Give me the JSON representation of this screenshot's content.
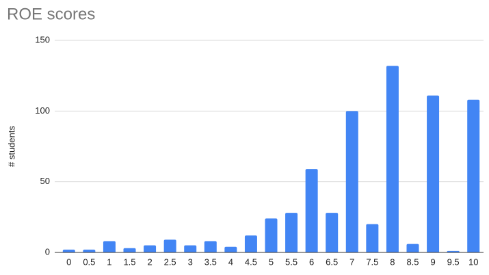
{
  "chart_data": {
    "type": "bar",
    "title": "ROE scores",
    "y_label": "# students",
    "categories": [
      "0",
      "0.5",
      "1",
      "1.5",
      "2",
      "2.5",
      "3",
      "3.5",
      "4",
      "4.5",
      "5",
      "5.5",
      "6",
      "6.5",
      "7",
      "7.5",
      "8",
      "8.5",
      "9",
      "9.5",
      "10"
    ],
    "values": [
      2,
      2,
      8,
      3,
      5,
      9,
      5,
      8,
      4,
      12,
      24,
      28,
      59,
      28,
      100,
      20,
      132,
      6,
      111,
      1,
      108
    ],
    "color": "#4285f4",
    "ylim": [
      0,
      150
    ],
    "yticks": [
      0,
      50,
      100,
      150
    ],
    "grid": true
  }
}
